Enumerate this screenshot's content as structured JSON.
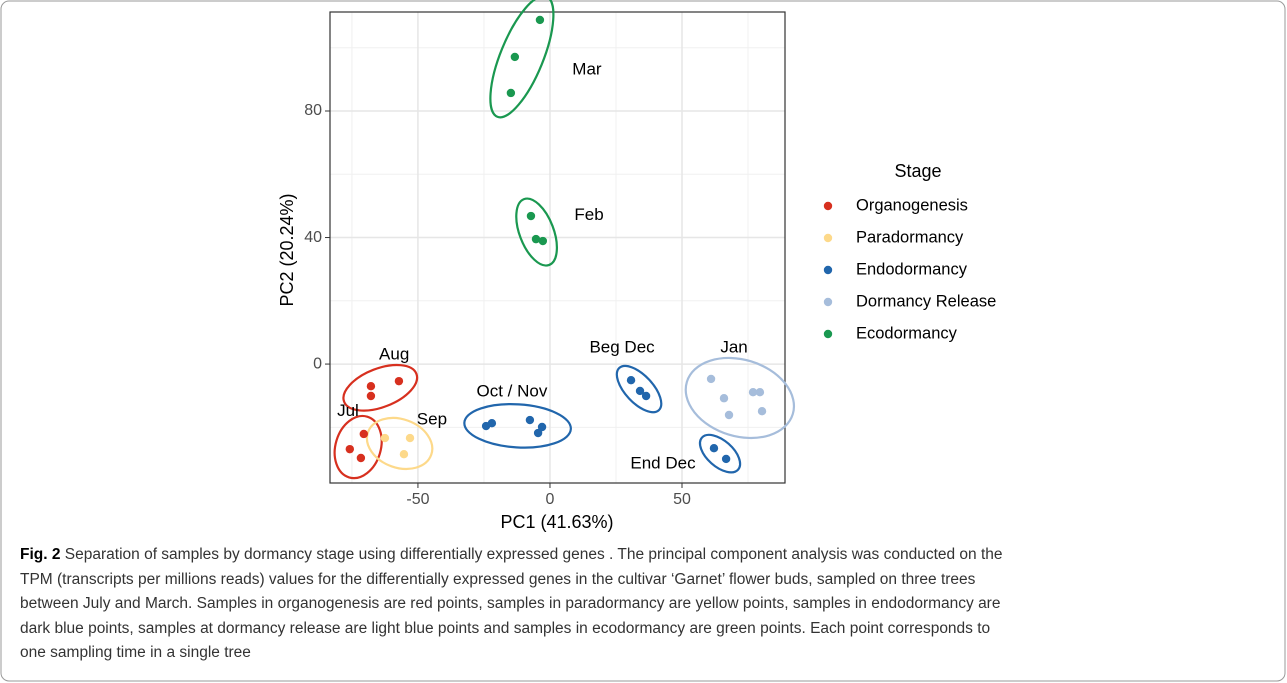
{
  "chart_data": {
    "type": "scatter",
    "xlabel": "PC1 (41.63%)",
    "ylabel": "PC2 (20.24%)",
    "xlim": [
      -83.3,
      89
    ],
    "ylim": [
      -37.6,
      111.3
    ],
    "xticks": [
      -50,
      0,
      50
    ],
    "yticks": [
      0,
      40,
      80
    ],
    "grid": true,
    "legend": {
      "title": "Stage",
      "position": "right"
    },
    "series": [
      {
        "name": "Organogenesis",
        "color": "#d7301f",
        "x": [
          -67.8,
          -67.8,
          -57.2,
          -70.5,
          -75.8,
          -71.6
        ],
        "y": [
          -7.0,
          -10.1,
          -5.4,
          -22.1,
          -26.9,
          -29.7
        ]
      },
      {
        "name": "Paradormancy",
        "color": "#fdd98a",
        "x": [
          -62.5,
          -53,
          -55.3
        ],
        "y": [
          -23.4,
          -23.4,
          -28.5
        ]
      },
      {
        "name": "Endodormancy",
        "color": "#2166ac",
        "x": [
          -24.2,
          -22,
          -7.6,
          -3,
          -4.5,
          30.7,
          34.1,
          36.4,
          62.1,
          66.7
        ],
        "y": [
          -19.6,
          -18.7,
          -17.7,
          -19.9,
          -21.8,
          -5.1,
          -8.5,
          -10.1,
          -26.6,
          -30
        ]
      },
      {
        "name": "Dormancy Release",
        "color": "#a6bddb",
        "x": [
          61,
          65.9,
          67.8,
          76.9,
          79.5,
          80.3
        ],
        "y": [
          -4.7,
          -10.8,
          -16.1,
          -8.9,
          -8.9,
          -14.9
        ]
      },
      {
        "name": "Ecodormancy",
        "color": "#1a9850",
        "x": [
          -3.8,
          -13.3,
          -14.8,
          -7.2,
          -5.3,
          -2.7
        ],
        "y": [
          108.8,
          97.1,
          85.7,
          46.8,
          39.5,
          38.9
        ]
      }
    ],
    "annotations": [
      {
        "label": "Aug",
        "x": -59,
        "y": 2.8,
        "series": 0,
        "points": [
          0,
          1,
          2
        ]
      },
      {
        "label": "Jul",
        "x": -76.5,
        "y": -15,
        "series": 0,
        "points": [
          3,
          4,
          5
        ]
      },
      {
        "label": "Sep",
        "x": -44.7,
        "y": -17.7,
        "series": 1,
        "points": [
          0,
          1,
          2
        ]
      },
      {
        "label": "Oct / Nov",
        "x": -14.4,
        "y": -8.9,
        "series": 2,
        "points": [
          0,
          1,
          2,
          3,
          4
        ]
      },
      {
        "label": "Beg Dec",
        "x": 27.3,
        "y": 5,
        "series": 2,
        "points": [
          5,
          6,
          7
        ]
      },
      {
        "label": "End Dec",
        "x": 42.8,
        "y": -31.6,
        "series": 2,
        "points": [
          8,
          9
        ]
      },
      {
        "label": "Jan",
        "x": 69.7,
        "y": 5,
        "series": 3,
        "points": [
          0,
          1,
          2,
          3,
          4,
          5
        ]
      },
      {
        "label": "Mar",
        "x": 14,
        "y": 93,
        "series": 4,
        "points": [
          0,
          1,
          2
        ]
      },
      {
        "label": "Feb",
        "x": 14.8,
        "y": 47,
        "series": 4,
        "points": [
          3,
          4,
          5
        ]
      }
    ]
  },
  "caption": {
    "label": "Fig. 2",
    "lines": [
      " Separation of samples by dormancy stage using differentially expressed genes . The principal component analysis was conducted on the",
      "TPM (transcripts per millions reads) values for the differentially expressed genes in the cultivar ‘Garnet’ flower buds, sampled on three trees",
      "between July and March. Samples in organogenesis are red points, samples in paradormancy are yellow points, samples in endodormancy are",
      "dark blue points, samples at dormancy release are light blue points and samples in ecodormancy are green points. Each point corresponds to",
      "one sampling time in a single tree"
    ]
  }
}
